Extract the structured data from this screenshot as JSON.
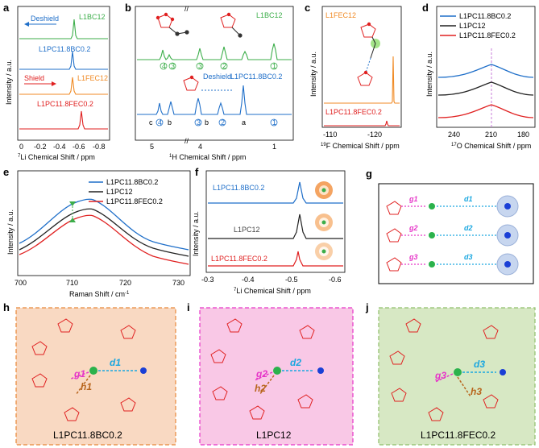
{
  "panels": {
    "a": {
      "letter": "a",
      "ylabel": "Intensity / a.u.",
      "xlabel_sup": "7",
      "xlabel": "Li Chemical Shift / ppm",
      "xticks": [
        "0",
        "-0.2",
        "-0.4",
        "-0.6",
        "-0.8"
      ],
      "deshield": "Deshield",
      "shield": "Shield",
      "labels": [
        "L1BC12",
        "L1PC11.8BC0.2",
        "L1FEC12",
        "L1PC11.8FEC0.2"
      ],
      "colors": [
        "#3cae4a",
        "#1f6fc9",
        "#f08a24",
        "#e02020"
      ]
    },
    "b": {
      "letter": "b",
      "xlabel_sup": "1",
      "xlabel": "H Chemical Shift / ppm",
      "xticks": [
        "5",
        "4",
        "1"
      ],
      "label_top": "L1BC12",
      "label_bottom": "L1PC11.8BC0.2",
      "deshield": "Deshield",
      "peak_letters": [
        "c",
        "b",
        "b",
        "a",
        "c",
        "b",
        "a"
      ],
      "peak_numbers": [
        "4",
        "3",
        "3",
        "2",
        "1",
        "4",
        "3",
        "2",
        "1"
      ]
    },
    "c": {
      "letter": "c",
      "ylabel": "Intensity / a.u.",
      "xlabel_sup": "19",
      "xlabel": "F Chemical Shift / ppm",
      "xticks": [
        "-110",
        "-120"
      ],
      "label_top": "L1FEC12",
      "label_bottom": "L1PC11.8FEC0.2"
    },
    "d": {
      "letter": "d",
      "ylabel": "Intensity / a.u.",
      "xlabel_sup": "17",
      "xlabel": "O Chemical Shift / ppm",
      "xticks": [
        "240",
        "210",
        "180"
      ],
      "legend": [
        "L1PC11.8BC0.2",
        "L1PC12",
        "L1PC11.8FEC0.2"
      ]
    },
    "e": {
      "letter": "e",
      "ylabel": "Intensity / a.u.",
      "xlabel": "Raman Shift / cm",
      "xlabel_sup": "-1",
      "xticks": [
        "700",
        "710",
        "720",
        "730"
      ],
      "legend": [
        "L1PC11.8BC0.2",
        "L1PC12",
        "L1PC11.8FEC0.2"
      ]
    },
    "f": {
      "letter": "f",
      "ylabel": "Intensity / a.u.",
      "xlabel_sup": "7",
      "xlabel": "Li Chemical Shift / ppm",
      "xticks": [
        "-0.3",
        "-0.4",
        "-0.5",
        "-0.6"
      ],
      "labels": [
        "L1PC11.8BC0.2",
        "L1PC12",
        "L1PC11.8FEC0.2"
      ]
    },
    "g": {
      "letter": "g",
      "rows": [
        {
          "g": "g1",
          "d": "d1"
        },
        {
          "g": "g2",
          "d": "d2"
        },
        {
          "g": "g3",
          "d": "d3"
        }
      ]
    },
    "h": {
      "letter": "h",
      "g": "g1",
      "h": "h1",
      "d": "d1",
      "caption": "L1PC11.8BC0.2",
      "bg": "#f9d9c2"
    },
    "i": {
      "letter": "i",
      "g": "g2",
      "h": "h2",
      "d": "d2",
      "caption": "L1PC12",
      "bg": "#f9c8e6"
    },
    "j": {
      "letter": "j",
      "g": "g3",
      "h": "h3",
      "d": "d3",
      "caption": "L1PC11.8FEC0.2",
      "bg": "#d7e8c4"
    }
  },
  "colors": {
    "blue": "#1f6fc9",
    "black": "#222222",
    "red": "#e02020",
    "green": "#3cae4a",
    "orange": "#f08a24",
    "magenta": "#e636c8",
    "cyan": "#1aa7e0",
    "brown": "#b8651c"
  }
}
